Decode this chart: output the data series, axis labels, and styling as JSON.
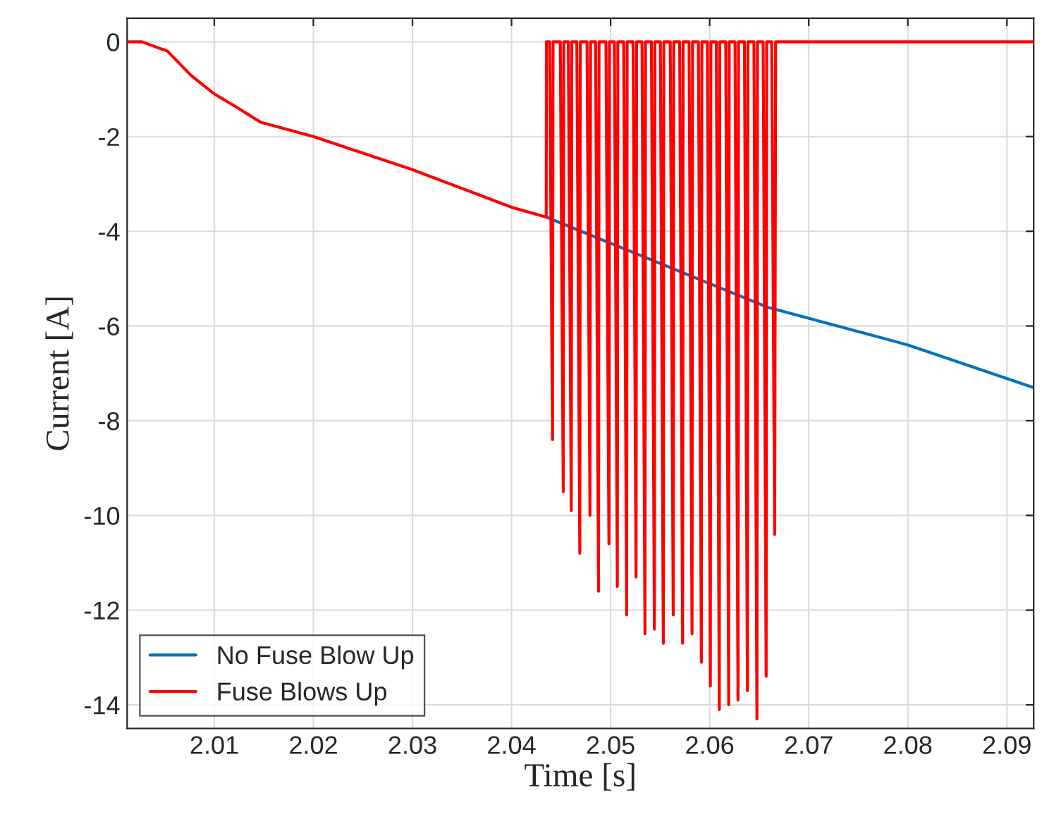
{
  "chart_data": {
    "type": "line",
    "xlabel": "Time [s]",
    "ylabel": "Current [A]",
    "xlim": [
      2.0012,
      2.0927
    ],
    "ylim": [
      -14.5,
      0.5
    ],
    "xticks": [
      2.01,
      2.02,
      2.03,
      2.04,
      2.05,
      2.06,
      2.07,
      2.08,
      2.09
    ],
    "yticks": [
      0,
      -2,
      -4,
      -6,
      -8,
      -10,
      -12,
      -14
    ],
    "grid": true,
    "legend": "bottom left",
    "line_style": "solid",
    "marker": "none",
    "series": [
      {
        "name": "No Fuse Blow Up",
        "color": "#0072bd",
        "x": [
          2.0435,
          2.0658,
          2.08,
          2.0927
        ],
        "values": [
          -3.7,
          -5.6,
          -6.4,
          -7.3
        ]
      },
      {
        "name": "Fuse Blows Up",
        "color": "#ff0000",
        "x": [
          2.0012,
          2.0027,
          2.0053,
          2.0076,
          2.01,
          2.0124,
          2.0147,
          2.02,
          2.03,
          2.0401,
          2.0435,
          2.04352,
          2.04384,
          2.04414,
          2.04419,
          2.04492,
          2.04522,
          2.04527,
          2.04573,
          2.04603,
          2.04608,
          2.04659,
          2.04689,
          2.04694,
          2.04762,
          2.04792,
          2.04797,
          2.04848,
          2.04878,
          2.04883,
          2.04953,
          2.04983,
          2.04988,
          2.05038,
          2.05068,
          2.05073,
          2.05132,
          2.05162,
          2.05167,
          2.05227,
          2.05257,
          2.05262,
          2.05317,
          2.05347,
          2.05352,
          2.05412,
          2.05442,
          2.05447,
          2.05502,
          2.05532,
          2.05537,
          2.05602,
          2.05632,
          2.05637,
          2.05697,
          2.05727,
          2.05732,
          2.05792,
          2.05822,
          2.05827,
          2.05886,
          2.05916,
          2.05921,
          2.05977,
          2.06007,
          2.06012,
          2.06067,
          2.06097,
          2.06102,
          2.06162,
          2.06192,
          2.06197,
          2.06256,
          2.06286,
          2.06291,
          2.06351,
          2.06381,
          2.06386,
          2.06447,
          2.06477,
          2.06482,
          2.0654,
          2.0657,
          2.06575,
          2.06626,
          2.06656,
          2.06666,
          2.0927
        ],
        "values": [
          0,
          0,
          -0.2,
          -0.7,
          -1.1,
          -1.4,
          -1.7,
          -2.0,
          -2.7,
          -3.5,
          -3.7,
          0,
          0,
          -8.4,
          0,
          0,
          -9.5,
          0,
          0,
          -9.9,
          0,
          0,
          -10.8,
          0,
          0,
          -10.0,
          0,
          0,
          -11.6,
          0,
          0,
          -10.6,
          0,
          0,
          -11.5,
          0,
          0,
          -12.1,
          0,
          0,
          -11.3,
          0,
          0,
          -12.5,
          0,
          0,
          -12.4,
          0,
          0,
          -12.7,
          0,
          0,
          -12.1,
          0,
          0,
          -12.7,
          0,
          0,
          -12.5,
          0,
          0,
          -13.1,
          0,
          0,
          -13.6,
          0,
          0,
          -14.1,
          0,
          0,
          -14.0,
          0,
          0,
          -13.9,
          0,
          0,
          -13.7,
          0,
          0,
          -14.3,
          0,
          0,
          -13.4,
          0,
          0,
          -10.4,
          0,
          0
        ]
      }
    ]
  }
}
